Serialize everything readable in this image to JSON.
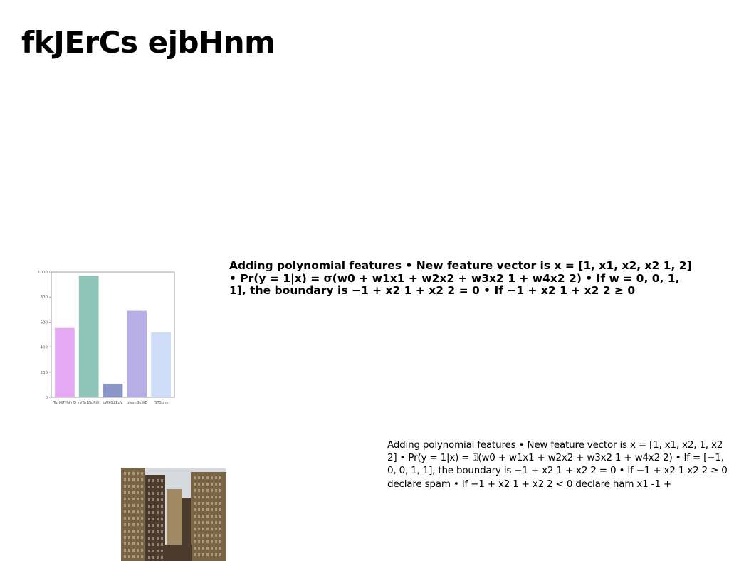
{
  "slide": {
    "title": "fkJErCs ejbHnm",
    "bold_paragraph": "Adding polynomial features • New feature vector is x = [1, x1, x2, x2 1, 2] • Pr(y = 1|x) = σ(w0 + w1x1 + w2x2 + w3x2 1 + w4x2 2) • If w = 0, 0, 1, 1], the boundary is −1 + x2 1 + x2 2 = 0 • If −1 + x2 1 + x2 2 ≥ 0",
    "plain_paragraph": "Adding polynomial features • New feature vector is x = [1, x1, x2, 1, x2 2] • Pr(y = 1|x) = ⍰(w0 + w1x1 + w2x2 + w3x2 1 + w4x2 2) • If = [−1, 0, 0, 1, 1], the boundary is −1 + x2 1 + x2 2 = 0 • If −1 + x2 1 x2 2 ≥ 0 declare spam • If −1 + x2 1 + x2 2 < 0 declare ham x1 -1 +"
  },
  "chart_data": {
    "type": "bar",
    "categories": [
      "TuHGTPhFnD",
      "rVBzBSqRW",
      "cWkGZEqV",
      "gwphGxWE",
      "fSTSu m"
    ],
    "values": [
      553,
      970,
      108,
      690,
      518
    ],
    "colors": [
      "#e6a8f2",
      "#8fc5b8",
      "#8a96c8",
      "#b8aee6",
      "#cfdcf8"
    ],
    "ylim": [
      0,
      1000
    ],
    "yticks": [
      0,
      200,
      400,
      600,
      800,
      1000
    ],
    "yticklabels": [
      "0",
      "200",
      "400",
      "600",
      "800",
      "1000"
    ],
    "grid": false
  },
  "photo": {
    "sky": "#d6d9de",
    "tower_dark": "#4a3b2c",
    "tower_mid": "#7a6446",
    "tower_light": "#a08a66",
    "window": "#e8dcc0"
  }
}
